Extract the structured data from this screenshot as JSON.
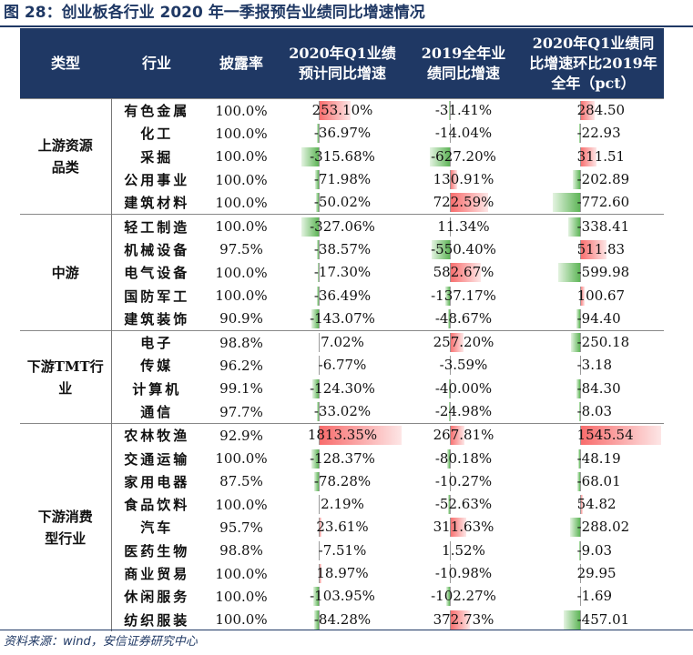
{
  "title": "图 28：创业板各行业 2020 年一季报预告业绩同比增速情况",
  "source": "资料来源：wind，安信证券研究中心",
  "headers": [
    "类型",
    "行业",
    "披露率",
    "2020年Q1业绩预计同比增速",
    "2019全年业绩同比增速",
    "2020年Q1业绩同比增速环比2019年全年（pct）"
  ],
  "groups": [
    {
      "name": "上游资源品类",
      "rows": [
        {
          "industry": "有色金属",
          "rate": "100.0%",
          "q1": "253.10%",
          "y2019": "-31.41%",
          "pct": "284.50"
        },
        {
          "industry": "化工",
          "rate": "100.0%",
          "q1": "-36.97%",
          "y2019": "-14.04%",
          "pct": "-22.93"
        },
        {
          "industry": "采掘",
          "rate": "100.0%",
          "q1": "-315.68%",
          "y2019": "-627.20%",
          "pct": "311.51"
        },
        {
          "industry": "公用事业",
          "rate": "100.0%",
          "q1": "-71.98%",
          "y2019": "130.91%",
          "pct": "-202.89"
        },
        {
          "industry": "建筑材料",
          "rate": "100.0%",
          "q1": "-50.02%",
          "y2019": "722.59%",
          "pct": "-772.60"
        }
      ]
    },
    {
      "name": "中游",
      "rows": [
        {
          "industry": "轻工制造",
          "rate": "100.0%",
          "q1": "-327.06%",
          "y2019": "11.34%",
          "pct": "-338.41"
        },
        {
          "industry": "机械设备",
          "rate": "97.5%",
          "q1": "-38.57%",
          "y2019": "-550.40%",
          "pct": "511.83"
        },
        {
          "industry": "电气设备",
          "rate": "100.0%",
          "q1": "-17.30%",
          "y2019": "582.67%",
          "pct": "-599.98"
        },
        {
          "industry": "国防军工",
          "rate": "100.0%",
          "q1": "-36.49%",
          "y2019": "-137.17%",
          "pct": "100.67"
        },
        {
          "industry": "建筑装饰",
          "rate": "90.9%",
          "q1": "-143.07%",
          "y2019": "-48.67%",
          "pct": "-94.40"
        }
      ]
    },
    {
      "name": "下游TMT行业",
      "rows": [
        {
          "industry": "电子",
          "rate": "98.8%",
          "q1": "7.02%",
          "y2019": "257.20%",
          "pct": "-250.18"
        },
        {
          "industry": "传媒",
          "rate": "96.2%",
          "q1": "-6.77%",
          "y2019": "-3.59%",
          "pct": "-3.18"
        },
        {
          "industry": "计算机",
          "rate": "99.1%",
          "q1": "-124.30%",
          "y2019": "-40.00%",
          "pct": "-84.30"
        },
        {
          "industry": "通信",
          "rate": "97.7%",
          "q1": "-33.02%",
          "y2019": "-24.98%",
          "pct": "-8.03"
        }
      ]
    },
    {
      "name": "下游消费型行业",
      "rows": [
        {
          "industry": "农林牧渔",
          "rate": "92.9%",
          "q1": "1813.35%",
          "y2019": "267.81%",
          "pct": "1545.54"
        },
        {
          "industry": "交通运输",
          "rate": "100.0%",
          "q1": "-128.37%",
          "y2019": "-80.18%",
          "pct": "-48.19"
        },
        {
          "industry": "家用电器",
          "rate": "87.5%",
          "q1": "-78.28%",
          "y2019": "-10.27%",
          "pct": "-68.01"
        },
        {
          "industry": "食品饮料",
          "rate": "100.0%",
          "q1": "2.19%",
          "y2019": "-52.63%",
          "pct": "54.82"
        },
        {
          "industry": "汽车",
          "rate": "95.7%",
          "q1": "23.61%",
          "y2019": "311.63%",
          "pct": "-288.02"
        },
        {
          "industry": "医药生物",
          "rate": "98.8%",
          "q1": "-7.51%",
          "y2019": "1.52%",
          "pct": "-9.03"
        },
        {
          "industry": "商业贸易",
          "rate": "100.0%",
          "q1": "18.97%",
          "y2019": "-10.98%",
          "pct": "29.95"
        },
        {
          "industry": "休闲服务",
          "rate": "100.0%",
          "q1": "-103.95%",
          "y2019": "-102.27%",
          "pct": "-1.69"
        },
        {
          "industry": "纺织服装",
          "rate": "100.0%",
          "q1": "-84.28%",
          "y2019": "372.73%",
          "pct": "-457.01"
        }
      ]
    }
  ],
  "colors": {
    "header_bg": "#1f3864",
    "header_text": "#ffffff",
    "positive_bar": "#f86b6b",
    "negative_bar": "#5eb557",
    "title": "#1f3864"
  }
}
